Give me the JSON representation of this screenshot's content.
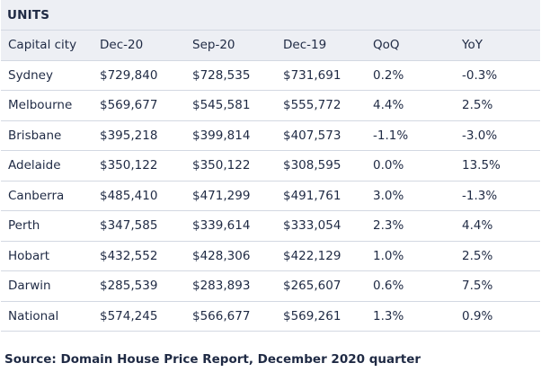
{
  "table": {
    "title": "UNITS",
    "headers": [
      "Capital city",
      "Dec-20",
      "Sep-20",
      "Dec-19",
      "QoQ",
      "YoY"
    ],
    "rows": [
      [
        "Sydney",
        "$729,840",
        "$728,535",
        "$731,691",
        "0.2%",
        "-0.3%"
      ],
      [
        "Melbourne",
        "$569,677",
        "$545,581",
        "$555,772",
        "4.4%",
        "2.5%"
      ],
      [
        "Brisbane",
        "$395,218",
        "$399,814",
        "$407,573",
        "-1.1%",
        "-3.0%"
      ],
      [
        "Adelaide",
        "$350,122",
        "$350,122",
        "$308,595",
        "0.0%",
        "13.5%"
      ],
      [
        "Canberra",
        "$485,410",
        "$471,299",
        "$491,761",
        "3.0%",
        "-1.3%"
      ],
      [
        "Perth",
        "$347,585",
        "$339,614",
        "$333,054",
        "2.3%",
        "4.4%"
      ],
      [
        "Hobart",
        "$432,552",
        "$428,306",
        "$422,129",
        "1.0%",
        "2.5%"
      ],
      [
        "Darwin",
        "$285,539",
        "$283,893",
        "$265,607",
        "0.6%",
        "7.5%"
      ],
      [
        "National",
        "$574,245",
        "$566,677",
        "$569,261",
        "1.3%",
        "0.9%"
      ]
    ]
  },
  "source": "Source: Domain House Price Report, December 2020 quarter",
  "colors": {
    "header_bg": "#edeff4",
    "border": "#d3d8e2",
    "text": "#1f2a44"
  }
}
